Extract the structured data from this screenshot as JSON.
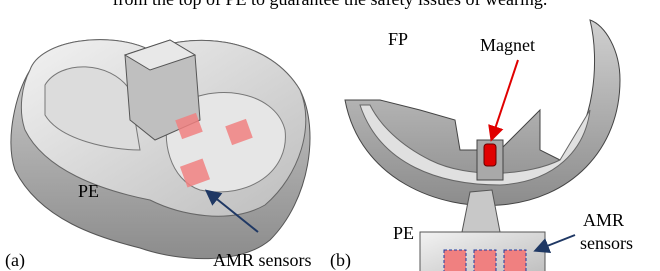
{
  "caption_fragment": "from the top of PE to guarantee the safety issues of wearing.",
  "panels": {
    "a": {
      "label": "(a)",
      "part": "PE",
      "sensors": "AMR sensors"
    },
    "b": {
      "label": "(b)",
      "top_part": "FP",
      "magnet": "Magnet",
      "bottom_part": "PE",
      "sensors": [
        "AMR",
        "sensors"
      ]
    }
  }
}
